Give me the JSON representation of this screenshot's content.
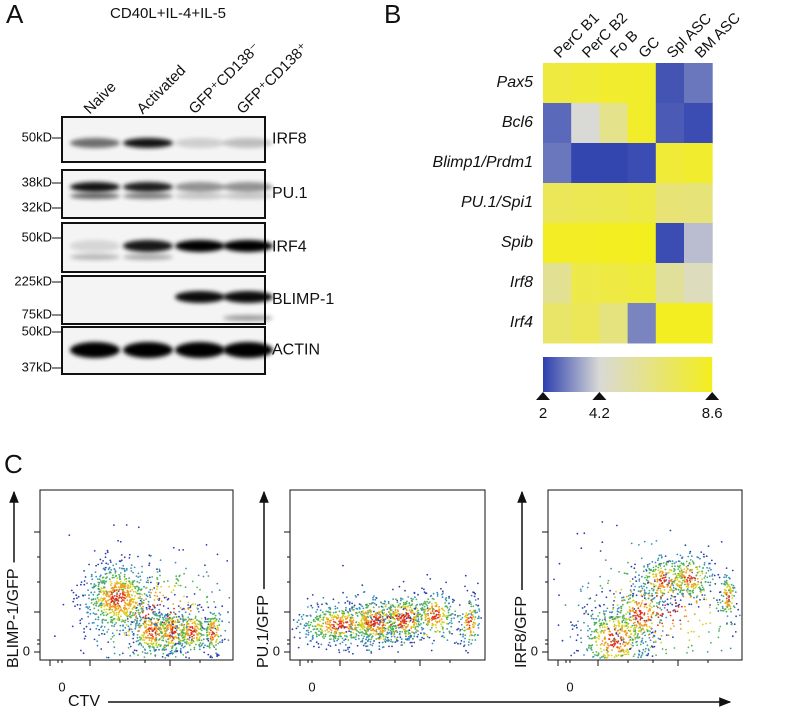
{
  "panel_a": {
    "label": "A",
    "condition": "CD40L+IL-4+IL-5",
    "lanes": [
      "Naive",
      "Activated",
      "GFP⁺CD138⁻",
      "GFP⁺CD138⁺"
    ],
    "blots": [
      {
        "name": "IRF8",
        "markers": [
          "50kD"
        ]
      },
      {
        "name": "PU.1",
        "markers": [
          "38kD",
          "32kD"
        ]
      },
      {
        "name": "IRF4",
        "markers": [
          "50kD"
        ]
      },
      {
        "name": "BLIMP-1",
        "markers": [
          "225kD",
          "75kD"
        ]
      },
      {
        "name": "ACTIN",
        "markers": [
          "50kD",
          "37kD"
        ]
      }
    ]
  },
  "chart_data": {
    "type": "heatmap",
    "label": "B",
    "x": [
      "PerC B1",
      "PerC B2",
      "Fo B",
      "GC",
      "Spl ASC",
      "BM ASC"
    ],
    "y": [
      "Pax5",
      "Bcl6",
      "Blimp1/Prdm1",
      "PU.1/Spi1",
      "Spib",
      "Irf8",
      "Irf4"
    ],
    "values": [
      [
        7.8,
        8.0,
        8.2,
        8.3,
        2.3,
        2.8
      ],
      [
        2.6,
        4.2,
        6.0,
        8.3,
        2.4,
        2.2
      ],
      [
        2.8,
        2.1,
        2.1,
        2.2,
        8.0,
        8.2
      ],
      [
        7.2,
        7.3,
        7.4,
        7.6,
        6.5,
        6.4
      ],
      [
        8.4,
        8.4,
        8.5,
        8.6,
        2.2,
        3.8
      ],
      [
        5.8,
        7.5,
        7.7,
        7.9,
        5.6,
        4.8
      ],
      [
        6.8,
        7.2,
        6.3,
        3.0,
        8.5,
        8.5
      ]
    ],
    "zlim": [
      2,
      8.6
    ],
    "zticks": [
      2,
      4.2,
      8.6
    ],
    "colors": [
      "#2b3fae",
      "#d9d9d6",
      "#f3ee1d"
    ]
  },
  "panel_c": {
    "label": "C",
    "x_label": "CTV",
    "zero": "0",
    "plots": [
      {
        "y_label": "BLIMP-1/GFP"
      },
      {
        "y_label": "PU.1/GFP"
      },
      {
        "y_label": "IRF8/GFP"
      }
    ]
  }
}
